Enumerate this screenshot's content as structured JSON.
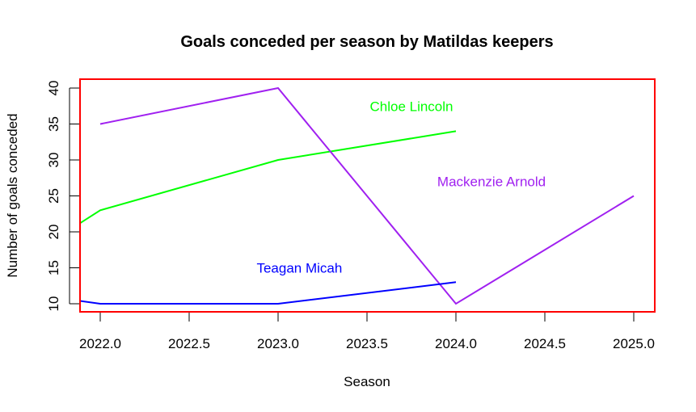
{
  "chart_data": {
    "type": "line",
    "title": "Goals conceded per season by Matildas keepers",
    "xlabel": "Season",
    "ylabel": "Number of goals conceded",
    "xlim": [
      2021.886,
      2025.12
    ],
    "ylim": [
      8.88,
      41.24
    ],
    "x_ticks": [
      "2022.0",
      "2022.5",
      "2023.0",
      "2023.5",
      "2024.0",
      "2024.5",
      "2025.0"
    ],
    "x_tick_values": [
      2022.0,
      2022.5,
      2023.0,
      2023.5,
      2024.0,
      2024.5,
      2025.0
    ],
    "y_ticks": [
      "10",
      "15",
      "20",
      "25",
      "30",
      "35",
      "40"
    ],
    "y_tick_values": [
      10,
      15,
      20,
      25,
      30,
      35,
      40
    ],
    "grid": false,
    "legend": "none (direct text labels)",
    "box_color": "#ff0000",
    "series": [
      {
        "name": "Chloe Lincoln",
        "color": "#00ff00",
        "x": [
          2021.886,
          2022.0,
          2023.0,
          2024.0
        ],
        "values": [
          21.2,
          23,
          30,
          34
        ],
        "label": {
          "text": "Chloe Lincoln",
          "x": 2023.75,
          "y": 37.5
        }
      },
      {
        "name": "Mackenzie Arnold",
        "color": "#a020f0",
        "x": [
          2022.0,
          2023.0,
          2024.0,
          2025.0
        ],
        "values": [
          35,
          40,
          10,
          25
        ],
        "label": {
          "text": "Mackenzie Arnold",
          "x": 2024.2,
          "y": 27
        }
      },
      {
        "name": "Teagan Micah",
        "color": "#0000ff",
        "x": [
          2021.886,
          2022.0,
          2023.0,
          2024.0
        ],
        "values": [
          10.4,
          10,
          10,
          13
        ],
        "label": {
          "text": "Teagan Micah",
          "x": 2023.12,
          "y": 15
        }
      }
    ]
  }
}
